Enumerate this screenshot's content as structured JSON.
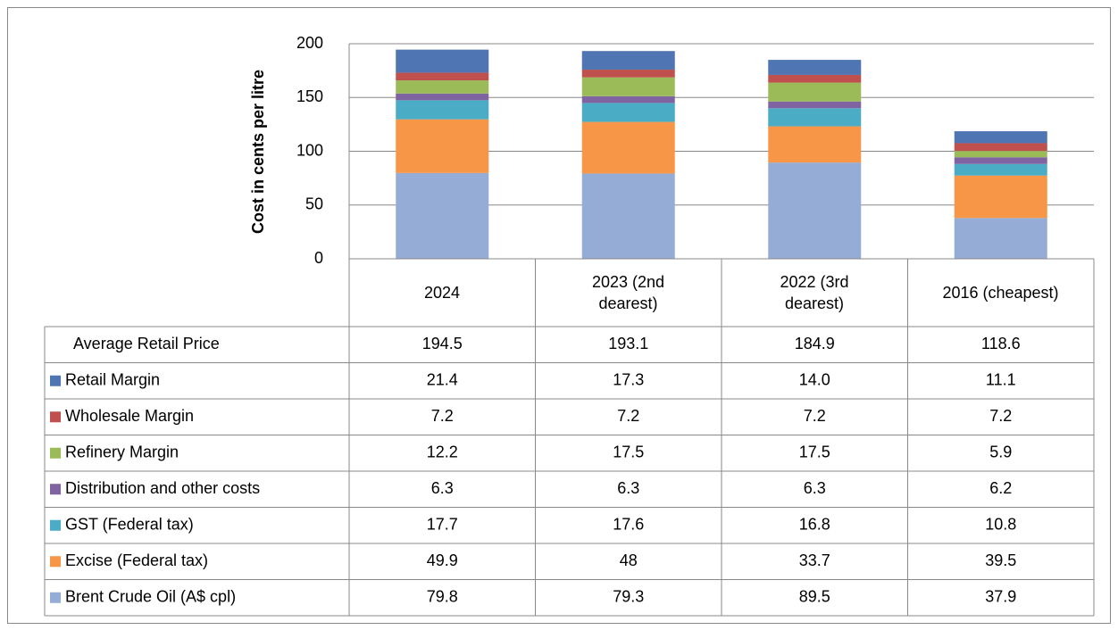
{
  "chart_data": {
    "type": "stacked-bar",
    "y_label": "Cost in cents per litre",
    "categories": [
      "2024",
      "2023 (2nd dearest)",
      "2022 (3rd dearest)",
      "2016 (cheapest)"
    ],
    "total": {
      "name": "Average Retail Price",
      "values": [
        194.5,
        193.1,
        184.9,
        118.6
      ]
    },
    "series": [
      {
        "name": "Retail Margin",
        "color": "#4f75b3",
        "values": [
          21.4,
          17.3,
          14,
          11.1
        ],
        "value_labels": [
          "21.4",
          "17.3",
          "14.0",
          "11.1"
        ]
      },
      {
        "name": "Wholesale Margin",
        "color": "#c0504d",
        "values": [
          7.2,
          7.2,
          7.2,
          7.2
        ]
      },
      {
        "name": "Refinery Margin",
        "color": "#9bbb59",
        "values": [
          12.2,
          17.5,
          17.5,
          5.9
        ]
      },
      {
        "name": "Distribution and other costs",
        "color": "#8064a2",
        "values": [
          6.3,
          6.3,
          6.3,
          6.2
        ]
      },
      {
        "name": "GST (Federal tax)",
        "color": "#4bacc6",
        "values": [
          17.7,
          17.6,
          16.8,
          10.8
        ]
      },
      {
        "name": "Excise (Federal tax)",
        "color": "#f79646",
        "values": [
          49.9,
          48,
          33.7,
          39.5
        ]
      },
      {
        "name": "Brent Crude Oil (A$ cpl)",
        "color": "#95acd6",
        "values": [
          79.8,
          79.3,
          89.5,
          37.9
        ]
      }
    ],
    "ylim": [
      0,
      200
    ],
    "yticks": [
      0,
      50,
      100,
      150,
      200
    ],
    "grid": true
  }
}
